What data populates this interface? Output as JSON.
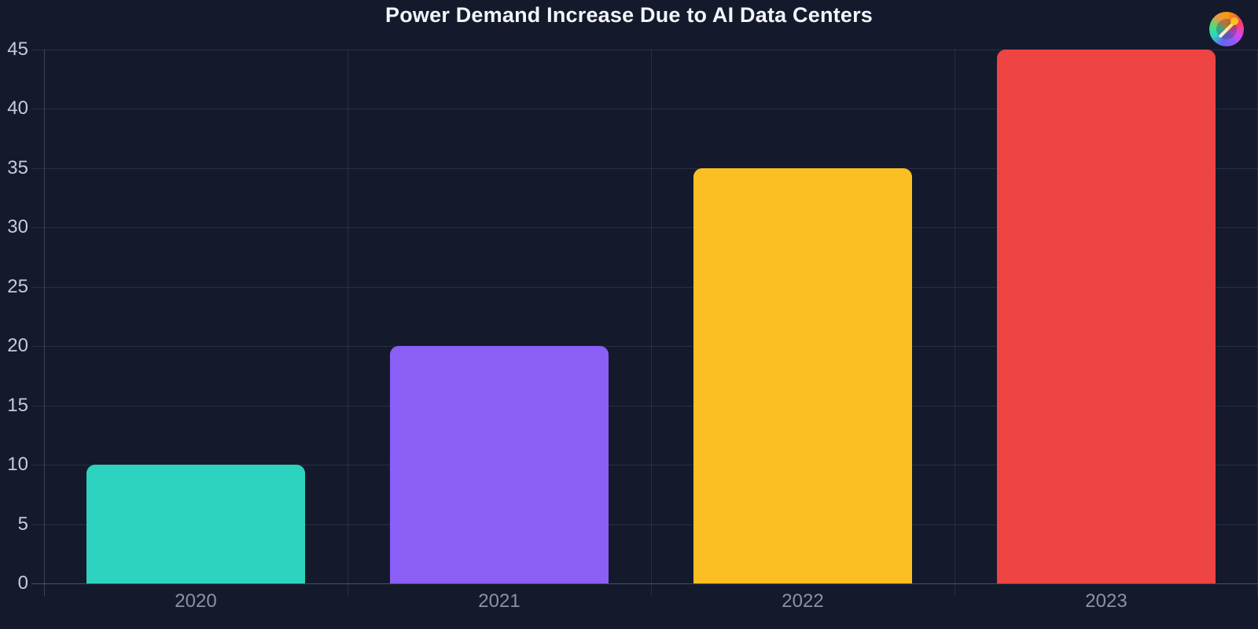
{
  "page": {
    "background_color": "#141a2c"
  },
  "header": {
    "title": "Power Demand Increase Due to AI Data Centers",
    "title_color": "#f3f5f9",
    "logo_icon": "rainbow-gauge-icon"
  },
  "chart_data": {
    "type": "bar",
    "title": "Power Demand Increase Due to AI Data Centers",
    "categories": [
      "2020",
      "2021",
      "2022",
      "2023"
    ],
    "values": [
      10,
      20,
      35,
      45
    ],
    "bar_colors": [
      "#2ed3bf",
      "#8b5ef6",
      "#fbbf24",
      "#ef4444"
    ],
    "xlabel": "",
    "ylabel": "",
    "ylim": [
      0,
      45
    ],
    "ytick_interval": 5,
    "yticks": [
      0,
      5,
      10,
      15,
      20,
      25,
      30,
      35,
      40,
      45
    ],
    "grid": "on",
    "legend": "none",
    "theme": {
      "grid_color": "rgba(148,163,184,0.16)",
      "axis_color": "rgba(148,163,184,0.30)",
      "ytick_label_color": "#c6ccd7",
      "xtick_label_color": "#8b92a3"
    }
  }
}
